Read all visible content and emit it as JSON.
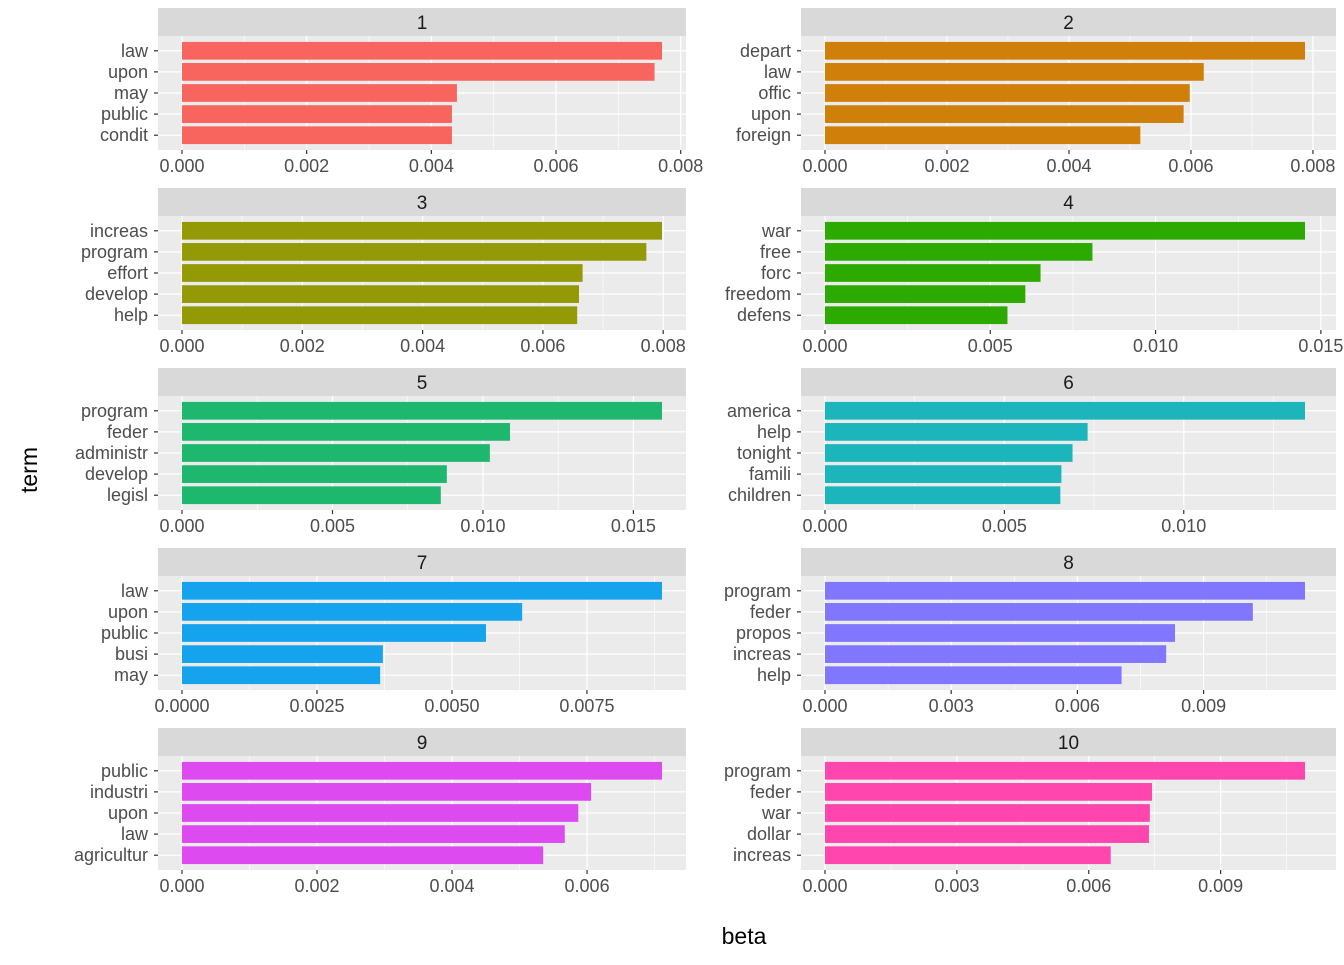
{
  "chart_data": {
    "type": "bar",
    "orientation": "horizontal",
    "xlabel": "beta",
    "ylabel": "term",
    "grid": true,
    "legend": "none",
    "panels": [
      {
        "title": "1",
        "color": "#F8645E",
        "terms": [
          "law",
          "upon",
          "may",
          "public",
          "condit"
        ],
        "values": [
          0.0077,
          0.00758,
          0.00441,
          0.00433,
          0.00433
        ],
        "ticks": [
          0,
          0.002,
          0.004,
          0.006,
          0.008
        ],
        "tick_labels": [
          "0.000",
          "0.002",
          "0.004",
          "0.006",
          "0.008"
        ]
      },
      {
        "title": "2",
        "color": "#CF7F0A",
        "terms": [
          "depart",
          "law",
          "offic",
          "upon",
          "foreign"
        ],
        "values": [
          0.00787,
          0.00621,
          0.00598,
          0.00588,
          0.00517
        ],
        "ticks": [
          0,
          0.002,
          0.004,
          0.006,
          0.008
        ],
        "tick_labels": [
          "0.000",
          "0.002",
          "0.004",
          "0.006",
          "0.008"
        ]
      },
      {
        "title": "3",
        "color": "#949A06",
        "terms": [
          "increas",
          "program",
          "effort",
          "develop",
          "help"
        ],
        "values": [
          0.00798,
          0.00772,
          0.00666,
          0.0066,
          0.00657
        ],
        "ticks": [
          0,
          0.002,
          0.004,
          0.006,
          0.008
        ],
        "tick_labels": [
          "0.000",
          "0.002",
          "0.004",
          "0.006",
          "0.008"
        ]
      },
      {
        "title": "4",
        "color": "#2DAA00",
        "terms": [
          "war",
          "free",
          "forc",
          "freedom",
          "defens"
        ],
        "values": [
          0.01452,
          0.00809,
          0.00652,
          0.00606,
          0.00552
        ],
        "ticks": [
          0,
          0.005,
          0.01,
          0.015
        ],
        "tick_labels": [
          "0.000",
          "0.005",
          "0.010",
          "0.015"
        ]
      },
      {
        "title": "5",
        "color": "#1DB86E",
        "terms": [
          "program",
          "feder",
          "administr",
          "develop",
          "legisl"
        ],
        "values": [
          0.01595,
          0.0109,
          0.01023,
          0.0088,
          0.0086
        ],
        "ticks": [
          0,
          0.005,
          0.01,
          0.015
        ],
        "tick_labels": [
          "0.000",
          "0.005",
          "0.010",
          "0.015"
        ]
      },
      {
        "title": "6",
        "color": "#1BB5BB",
        "terms": [
          "america",
          "help",
          "tonight",
          "famili",
          "children"
        ],
        "values": [
          0.01338,
          0.00732,
          0.0069,
          0.00659,
          0.00656
        ],
        "ticks": [
          0,
          0.005,
          0.01
        ],
        "tick_labels": [
          "0.000",
          "0.005",
          "0.010"
        ]
      },
      {
        "title": "7",
        "color": "#16A3EE",
        "terms": [
          "law",
          "upon",
          "public",
          "busi",
          "may"
        ],
        "values": [
          0.00889,
          0.0063,
          0.00563,
          0.00372,
          0.00367
        ],
        "ticks": [
          0,
          0.0025,
          0.005,
          0.0075
        ],
        "tick_labels": [
          "0.0000",
          "0.0025",
          "0.0050",
          "0.0075"
        ]
      },
      {
        "title": "8",
        "color": "#8177FF",
        "terms": [
          "program",
          "feder",
          "propos",
          "increas",
          "help"
        ],
        "values": [
          0.01141,
          0.01017,
          0.00832,
          0.00811,
          0.00705
        ],
        "ticks": [
          0,
          0.003,
          0.006,
          0.009
        ],
        "tick_labels": [
          "0.000",
          "0.003",
          "0.006",
          "0.009"
        ]
      },
      {
        "title": "9",
        "color": "#DC4AF0",
        "terms": [
          "public",
          "industri",
          "upon",
          "law",
          "agricultur"
        ],
        "values": [
          0.00711,
          0.00606,
          0.00587,
          0.00567,
          0.00535
        ],
        "ticks": [
          0,
          0.002,
          0.004,
          0.006
        ],
        "tick_labels": [
          "0.000",
          "0.002",
          "0.004",
          "0.006"
        ]
      },
      {
        "title": "10",
        "color": "#FF46AE",
        "terms": [
          "program",
          "feder",
          "war",
          "dollar",
          "increas"
        ],
        "values": [
          0.01092,
          0.00744,
          0.00739,
          0.00737,
          0.0065
        ],
        "ticks": [
          0,
          0.003,
          0.006,
          0.009
        ],
        "tick_labels": [
          "0.000",
          "0.003",
          "0.006",
          "0.009"
        ]
      }
    ]
  }
}
